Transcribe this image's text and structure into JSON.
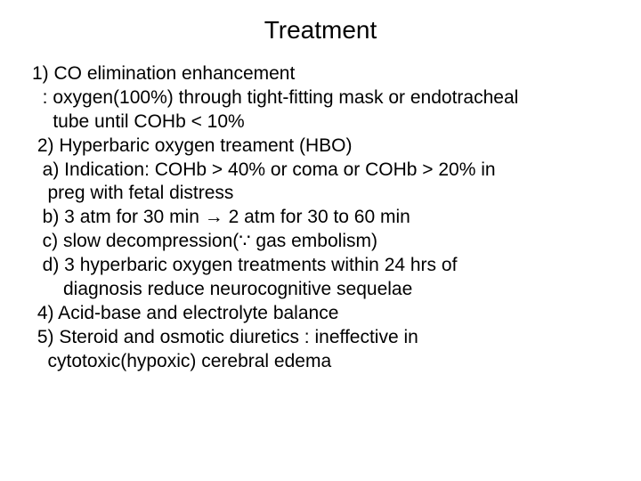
{
  "colors": {
    "background": "#ffffff",
    "text": "#000000"
  },
  "typography": {
    "title_fontsize": 28,
    "body_fontsize": 21,
    "font_family": "Arial"
  },
  "slide": {
    "title": "Treatment",
    "lines": [
      "1) CO elimination enhancement",
      "  : oxygen(100%) through tight-fitting mask or endotracheal",
      "    tube until COHb < 10%",
      " 2) Hyperbaric oxygen treament (HBO)",
      "  a) Indication: COHb > 40% or coma or COHb > 20% in",
      "   preg with fetal distress",
      "  b) 3 atm for 30 min → 2 atm for 30 to 60 min",
      "  c) slow decompression(∵ gas embolism)",
      "  d) 3 hyperbaric oxygen treatments within 24 hrs of",
      "      diagnosis reduce neurocognitive sequelae",
      " 4) Acid-base and electrolyte balance",
      " 5) Steroid and osmotic diuretics : ineffective in",
      "   cytotoxic(hypoxic) cerebral edema"
    ]
  }
}
